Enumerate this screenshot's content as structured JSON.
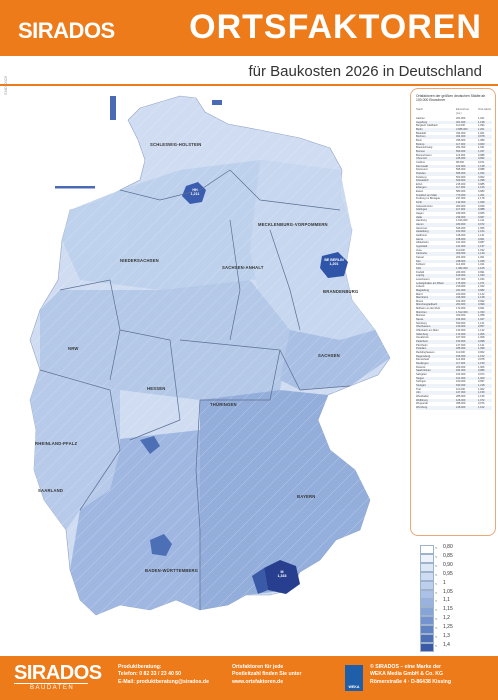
{
  "header": {
    "logo": "SIRADOS",
    "title": "ORTSFAKTOREN",
    "subtitle": "für Baukosten 2026 in Deutschland"
  },
  "side_code": "SMD-0026",
  "colors": {
    "brand_orange": "#ee7b1a",
    "scale": [
      "#ffffff",
      "#eef3fb",
      "#dde8f7",
      "#cddcf2",
      "#bccfec",
      "#abc2e6",
      "#99b3de",
      "#87a4d6",
      "#7594cd",
      "#6283c3",
      "#4d6fb6",
      "#3a59a6",
      "#283f8f"
    ]
  },
  "map": {
    "state_labels": [
      {
        "name": "SCHLESWIG-HOLSTEIN"
      },
      {
        "name": "MECKLENBURG-VORPOMMERN"
      },
      {
        "name": "NIEDERSACHSEN"
      },
      {
        "name": "SACHSEN-ANHALT"
      },
      {
        "name": "BRANDENBURG"
      },
      {
        "name": "NRW"
      },
      {
        "name": "SACHSEN"
      },
      {
        "name": "HESSEN"
      },
      {
        "name": "THÜRINGEN"
      },
      {
        "name": "RHEINLAND-PFALZ"
      },
      {
        "name": "SAARLAND"
      },
      {
        "name": "BAYERN"
      },
      {
        "name": "BADEN-WÜRTTEMBERG"
      }
    ],
    "city_pins": [
      {
        "name": "HH",
        "value": "1,211"
      },
      {
        "name": "BE BERLIN",
        "value": "1,201"
      },
      {
        "name": "M",
        "value": "1,333"
      }
    ]
  },
  "table": {
    "title": "Ortsfaktoren der größten deutschen Städte ab 100.000 Einwohner",
    "columns": [
      "Stadt",
      "Einwohner (ca.)",
      "Orts-faktor"
    ],
    "rows": [
      [
        "Aachen",
        "261.000",
        "1,021"
      ],
      [
        "Augsburg",
        "301.000",
        "1,198"
      ],
      [
        "Bergisch Gladbach",
        "111.000",
        "1,094"
      ],
      [
        "Berlin",
        "3.685.000",
        "1,201"
      ],
      [
        "Bielefeld",
        "334.000",
        "1,001"
      ],
      [
        "Bochum",
        "364.000",
        "0,978"
      ],
      [
        "Bonn",
        "335.000",
        "1,089"
      ],
      [
        "Bottrop",
        "117.000",
        "0,963"
      ],
      [
        "Braunschweig",
        "251.000",
        "1,031"
      ],
      [
        "Bremen",
        "569.000",
        "1,047"
      ],
      [
        "Bremerhaven",
        "113.000",
        "0,988"
      ],
      [
        "Chemnitz",
        "245.000",
        "0,952"
      ],
      [
        "Cottbus",
        "98.000",
        "0,971"
      ],
      [
        "Darmstadt",
        "162.000",
        "1,138"
      ],
      [
        "Dortmund",
        "595.000",
        "0,988"
      ],
      [
        "Dresden",
        "566.000",
        "1,044"
      ],
      [
        "Duisburg",
        "503.000",
        "0,962"
      ],
      [
        "Düsseldorf",
        "629.000",
        "1,098"
      ],
      [
        "Erfurt",
        "215.000",
        "0,985"
      ],
      [
        "Erlangen",
        "117.000",
        "1,126"
      ],
      [
        "Essen",
        "583.000",
        "0,983"
      ],
      [
        "Frankfurt am Main",
        "773.000",
        "1,201"
      ],
      [
        "Freiburg im Breisgau",
        "237.000",
        "1,178"
      ],
      [
        "Fürth",
        "132.000",
        "1,099"
      ],
      [
        "Gelsenkirchen",
        "263.000",
        "0,949"
      ],
      [
        "Göttingen",
        "117.000",
        "0,988"
      ],
      [
        "Hagen",
        "189.000",
        "0,965"
      ],
      [
        "Halle",
        "239.000",
        "0,967"
      ],
      [
        "Hamburg",
        "1.910.000",
        "1,211"
      ],
      [
        "Hamm",
        "180.000",
        "0,972"
      ],
      [
        "Hannover",
        "546.000",
        "1,056"
      ],
      [
        "Heidelberg",
        "162.000",
        "1,164"
      ],
      [
        "Heilbronn",
        "128.000",
        "1,141"
      ],
      [
        "Herne",
        "158.000",
        "0,961"
      ],
      [
        "Hildesheim",
        "101.000",
        "0,987"
      ],
      [
        "Ingolstadt",
        "141.000",
        "1,197"
      ],
      [
        "Jena",
        "111.000",
        "1,032"
      ],
      [
        "Karlsruhe",
        "309.000",
        "1,139"
      ],
      [
        "Kassel",
        "204.000",
        "1,001"
      ],
      [
        "Kiel",
        "248.000",
        "1,028"
      ],
      [
        "Koblenz",
        "114.000",
        "1,041"
      ],
      [
        "Köln",
        "1.084.000",
        "1,105"
      ],
      [
        "Krefeld",
        "229.000",
        "0,991"
      ],
      [
        "Leipzig",
        "619.000",
        "1,040"
      ],
      [
        "Leverkusen",
        "167.000",
        "1,034"
      ],
      [
        "Ludwigshafen am Rhein",
        "175.000",
        "1,071"
      ],
      [
        "Lübeck",
        "219.000",
        "1,042"
      ],
      [
        "Magdeburg",
        "241.000",
        "0,982"
      ],
      [
        "Mainz",
        "220.000",
        "1,142"
      ],
      [
        "Mannheim",
        "316.000",
        "1,138"
      ],
      [
        "Moers",
        "104.000",
        "0,992"
      ],
      [
        "Mönchengladbach",
        "263.000",
        "0,999"
      ],
      [
        "Mülheim an der Ruhr",
        "172.000",
        "0,991"
      ],
      [
        "München",
        "1.512.000",
        "1,333"
      ],
      [
        "Münster",
        "320.000",
        "1,058"
      ],
      [
        "Neuss",
        "154.000",
        "1,047"
      ],
      [
        "Nürnberg",
        "530.000",
        "1,121"
      ],
      [
        "Oberhausen",
        "210.000",
        "0,957"
      ],
      [
        "Offenbach am Main",
        "133.000",
        "1,132"
      ],
      [
        "Oldenburg",
        "172.000",
        "1,006"
      ],
      [
        "Osnabrück",
        "167.000",
        "1,008"
      ],
      [
        "Paderborn",
        "153.000",
        "0,998"
      ],
      [
        "Pforzheim",
        "127.000",
        "1,121"
      ],
      [
        "Potsdam",
        "185.000",
        "1,099"
      ],
      [
        "Recklinghausen",
        "111.000",
        "0,962"
      ],
      [
        "Regensburg",
        "156.000",
        "1,152"
      ],
      [
        "Remscheid",
        "112.000",
        "0,978"
      ],
      [
        "Reutlingen",
        "117.000",
        "1,159"
      ],
      [
        "Rostock",
        "209.000",
        "1,006"
      ],
      [
        "Saarbrücken",
        "181.000",
        "0,989"
      ],
      [
        "Salzgitter",
        "104.000",
        "0,974"
      ],
      [
        "Siegen",
        "101.000",
        "1,009"
      ],
      [
        "Solingen",
        "160.000",
        "0,997"
      ],
      [
        "Stuttgart",
        "633.000",
        "1,218"
      ],
      [
        "Trier",
        "111.000",
        "1,002"
      ],
      [
        "Ulm",
        "127.000",
        "1,159"
      ],
      [
        "Wiesbaden",
        "285.000",
        "1,136"
      ],
      [
        "Wolfsburg",
        "126.000",
        "1,072"
      ],
      [
        "Wuppertal",
        "358.000",
        "0,976"
      ],
      [
        "Würzburg",
        "128.000",
        "1,102"
      ]
    ]
  },
  "legend": {
    "items": [
      {
        "op": "<",
        "value": "0,80"
      },
      {
        "op": "<",
        "value": "0,85"
      },
      {
        "op": "<",
        "value": "0,90"
      },
      {
        "op": "<",
        "value": "0,95"
      },
      {
        "op": "<",
        "value": "1"
      },
      {
        "op": "<",
        "value": "1,05"
      },
      {
        "op": "<",
        "value": "1,1"
      },
      {
        "op": "<",
        "value": "1,15"
      },
      {
        "op": "<",
        "value": "1,2"
      },
      {
        "op": "<",
        "value": "1,25"
      },
      {
        "op": "<",
        "value": "1,3"
      },
      {
        "op": "<",
        "value": "1,4"
      }
    ]
  },
  "footer": {
    "logo": "SIRADOS",
    "logo_sub": "BAUDATEN",
    "col1": [
      "Produktberatung:",
      "Telefon: 0 82 33 / 23 40 50",
      "E-Mail: produktberatung@sirados.de"
    ],
    "col2": [
      "Ortsfaktoren für jede",
      "Postleitzahl finden Sie unter",
      "www.ortsfaktoren.de"
    ],
    "weka_label": "WEKA",
    "col3": [
      "© SIRADOS – eine Marke der",
      "WEKA Media GmbH & Co. KG",
      "Römerstraße 4 · D-86438 Kissing"
    ]
  }
}
